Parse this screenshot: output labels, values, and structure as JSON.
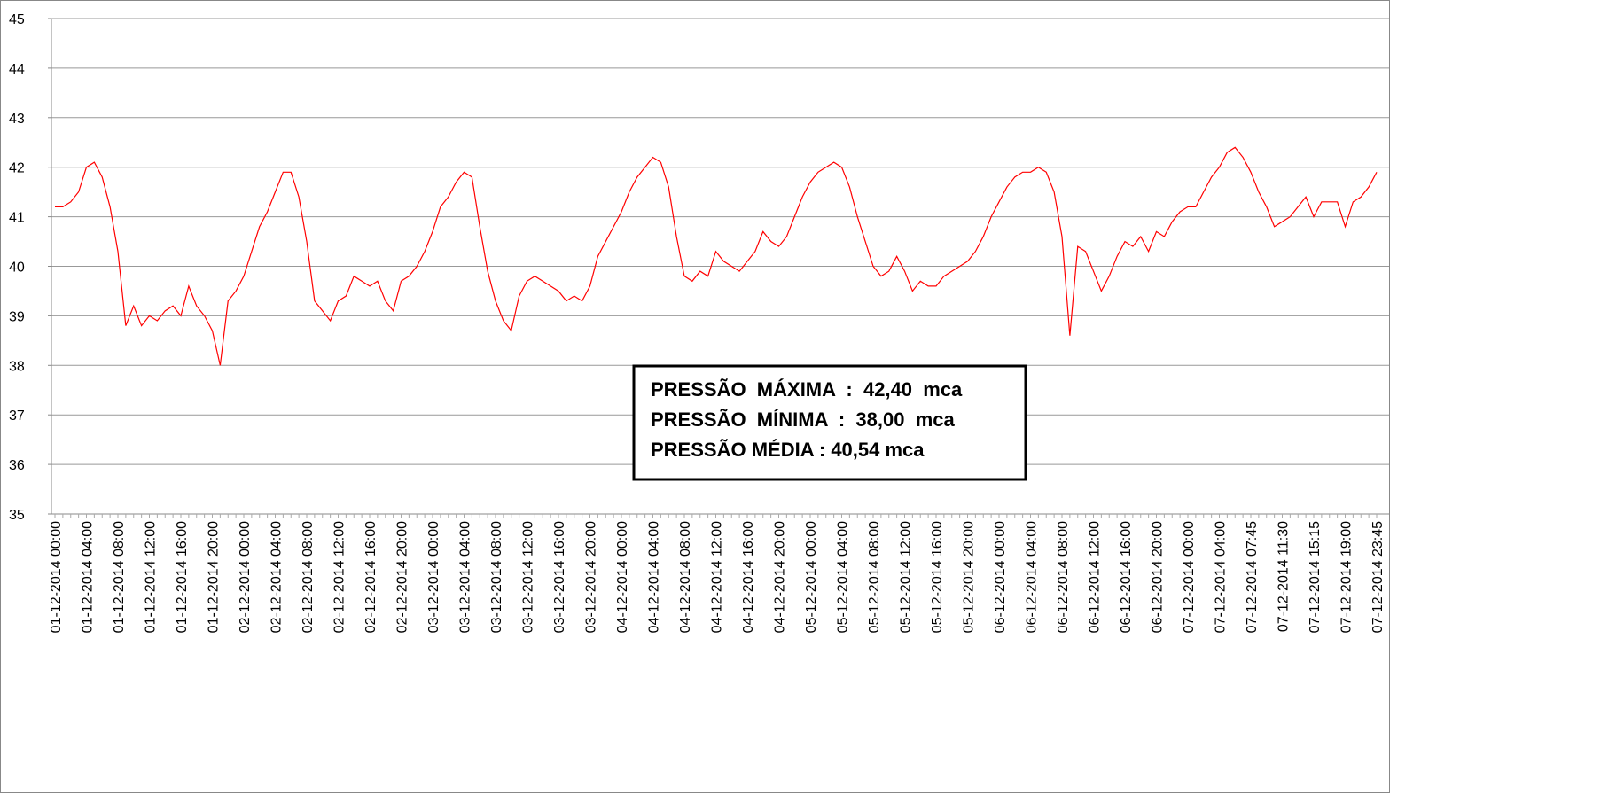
{
  "chart_data": {
    "type": "line",
    "categories": [
      "01-12-2014 00:00",
      null,
      null,
      null,
      "01-12-2014 04:00",
      null,
      null,
      null,
      "01-12-2014 08:00",
      null,
      null,
      null,
      "01-12-2014 12:00",
      null,
      null,
      null,
      "01-12-2014 16:00",
      null,
      null,
      null,
      "01-12-2014 20:00",
      null,
      null,
      null,
      "02-12-2014 00:00",
      null,
      null,
      null,
      "02-12-2014 04:00",
      null,
      null,
      null,
      "02-12-2014 08:00",
      null,
      null,
      null,
      "02-12-2014 12:00",
      null,
      null,
      null,
      "02-12-2014 16:00",
      null,
      null,
      null,
      "02-12-2014 20:00",
      null,
      null,
      null,
      "03-12-2014 00:00",
      null,
      null,
      null,
      "03-12-2014 04:00",
      null,
      null,
      null,
      "03-12-2014 08:00",
      null,
      null,
      null,
      "03-12-2014 12:00",
      null,
      null,
      null,
      "03-12-2014 16:00",
      null,
      null,
      null,
      "03-12-2014 20:00",
      null,
      null,
      null,
      "04-12-2014 00:00",
      null,
      null,
      null,
      "04-12-2014 04:00",
      null,
      null,
      null,
      "04-12-2014 08:00",
      null,
      null,
      null,
      "04-12-2014 12:00",
      null,
      null,
      null,
      "04-12-2014 16:00",
      null,
      null,
      null,
      "04-12-2014 20:00",
      null,
      null,
      null,
      "05-12-2014 00:00",
      null,
      null,
      null,
      "05-12-2014 04:00",
      null,
      null,
      null,
      "05-12-2014 08:00",
      null,
      null,
      null,
      "05-12-2014 12:00",
      null,
      null,
      null,
      "05-12-2014 16:00",
      null,
      null,
      null,
      "05-12-2014 20:00",
      null,
      null,
      null,
      "06-12-2014 00:00",
      null,
      null,
      null,
      "06-12-2014 04:00",
      null,
      null,
      null,
      "06-12-2014 08:00",
      null,
      null,
      null,
      "06-12-2014 12:00",
      null,
      null,
      null,
      "06-12-2014 16:00",
      null,
      null,
      null,
      "06-12-2014 20:00",
      null,
      null,
      null,
      "07-12-2014 00:00",
      null,
      null,
      null,
      "07-12-2014 04:00",
      null,
      null,
      null,
      "07-12-2014 07:45",
      null,
      null,
      null,
      "07-12-2014 11:30",
      null,
      null,
      null,
      "07-12-2014 15:15",
      null,
      null,
      null,
      "07-12-2014 19:00",
      null,
      null,
      null,
      "07-12-2014 23:45"
    ],
    "values": [
      41.2,
      41.2,
      41.3,
      41.5,
      42.0,
      42.1,
      41.8,
      41.2,
      40.3,
      38.8,
      39.2,
      38.8,
      39.0,
      38.9,
      39.1,
      39.2,
      39.0,
      39.6,
      39.2,
      39.0,
      38.7,
      38.0,
      39.3,
      39.5,
      39.8,
      40.3,
      40.8,
      41.1,
      41.5,
      41.9,
      41.9,
      41.4,
      40.5,
      39.3,
      39.1,
      38.9,
      39.3,
      39.4,
      39.8,
      39.7,
      39.6,
      39.7,
      39.3,
      39.1,
      39.7,
      39.8,
      40.0,
      40.3,
      40.7,
      41.2,
      41.4,
      41.7,
      41.9,
      41.8,
      40.8,
      39.9,
      39.3,
      38.9,
      38.7,
      39.4,
      39.7,
      39.8,
      39.7,
      39.6,
      39.5,
      39.3,
      39.4,
      39.3,
      39.6,
      40.2,
      40.5,
      40.8,
      41.1,
      41.5,
      41.8,
      42.0,
      42.2,
      42.1,
      41.6,
      40.6,
      39.8,
      39.7,
      39.9,
      39.8,
      40.3,
      40.1,
      40.0,
      39.9,
      40.1,
      40.3,
      40.7,
      40.5,
      40.4,
      40.6,
      41.0,
      41.4,
      41.7,
      41.9,
      42.0,
      42.1,
      42.0,
      41.6,
      41.0,
      40.5,
      40.0,
      39.8,
      39.9,
      40.2,
      39.9,
      39.5,
      39.7,
      39.6,
      39.6,
      39.8,
      39.9,
      40.0,
      40.1,
      40.3,
      40.6,
      41.0,
      41.3,
      41.6,
      41.8,
      41.9,
      41.9,
      42.0,
      41.9,
      41.5,
      40.6,
      38.6,
      40.4,
      40.3,
      39.9,
      39.5,
      39.8,
      40.2,
      40.5,
      40.4,
      40.6,
      40.3,
      40.7,
      40.6,
      40.9,
      41.1,
      41.2,
      41.2,
      41.5,
      41.8,
      42.0,
      42.3,
      42.4,
      42.2,
      41.9,
      41.5,
      41.2,
      40.8,
      40.9,
      41.0,
      41.2,
      41.4,
      41.0,
      41.3,
      41.3,
      41.3,
      40.8,
      41.3,
      41.4,
      41.6,
      41.9
    ],
    "color": "#ff0000",
    "ylim": [
      35,
      45
    ],
    "yticks": [
      35,
      36,
      37,
      38,
      39,
      40,
      41,
      42,
      43,
      44,
      45
    ],
    "grid": true,
    "annotations": [
      "PRESSÃO  MÁXIMA  :  42,40  mca",
      "PRESSÃO  MÍNIMA  :  38,00  mca",
      "PRESSÃO MÉDIA : 40,54 mca"
    ]
  }
}
